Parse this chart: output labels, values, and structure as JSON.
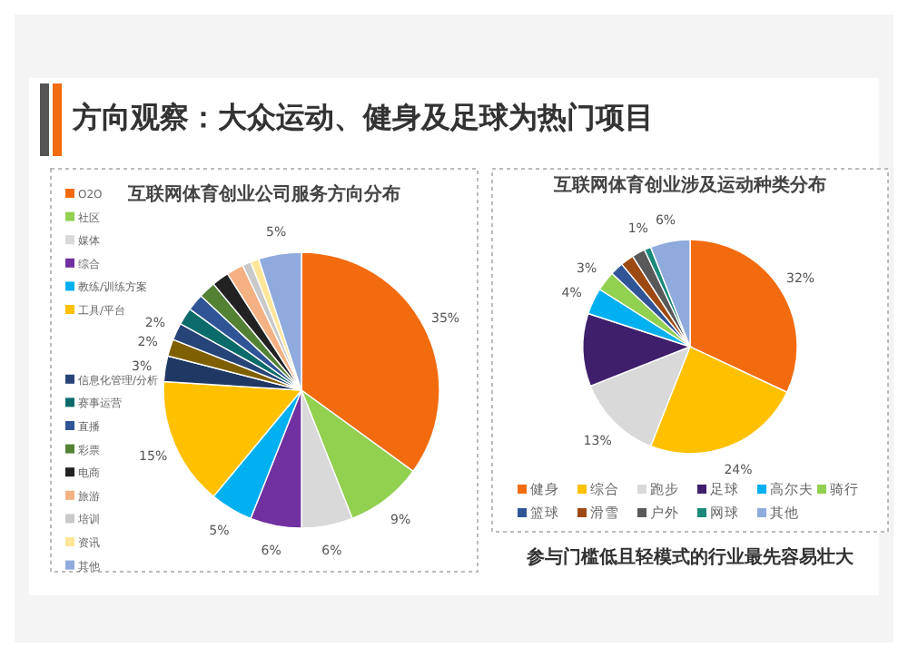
{
  "chart_data": [
    {
      "type": "pie",
      "title": "互联网体育创业公司服务方向分布",
      "annotations": [
        "方向观察：大众运动、健身及足球为热门项目"
      ],
      "legend": "left",
      "categories": [
        "O2O",
        "社区",
        "媒体",
        "综合",
        "教练/训练方案",
        "工具/平台",
        null,
        null,
        "信息化管理/分析",
        "赛事运营",
        "直播",
        "彩票",
        "电商",
        "旅游",
        "培训",
        "资讯",
        "其他"
      ],
      "values": [
        35,
        9,
        6,
        6,
        5,
        15,
        3,
        2,
        2,
        2,
        2,
        2,
        2,
        2,
        1,
        1,
        5
      ],
      "value_labels": [
        "35%",
        "9%",
        "6%",
        "6%",
        "5%",
        "15%",
        "3%",
        "2%",
        "2%",
        null,
        null,
        null,
        null,
        null,
        null,
        null,
        "5%"
      ],
      "colors": [
        "#f26b0f",
        "#92d050",
        "#d9d9d9",
        "#7030a0",
        "#00b0f0",
        "#ffc000",
        "#1f3864",
        "#7f6000",
        "#264478",
        "#0b6b6b",
        "#2f5597",
        "#548235",
        "#222222",
        "#f4b183",
        "#c9c9c9",
        "#ffe699",
        "#8faadc"
      ]
    },
    {
      "type": "pie",
      "title": "互联网体育创业涉及运动种类分布",
      "annotations": [
        "参与门槛低且轻模式的行业最先容易壮大"
      ],
      "legend": "bottom",
      "categories": [
        "健身",
        "综合",
        "跑步",
        "足球",
        "高尔夫",
        "骑行",
        "篮球",
        "滑雪",
        "户外",
        "网球",
        "其他"
      ],
      "values": [
        32,
        24,
        13,
        11,
        4,
        3,
        2,
        2,
        2,
        1,
        6
      ],
      "value_labels": [
        "32%",
        "24%",
        "13%",
        null,
        "4%",
        "3%",
        null,
        null,
        null,
        "1%",
        "6%"
      ],
      "colors": [
        "#f26b0f",
        "#ffc000",
        "#d9d9d9",
        "#3f1f6b",
        "#00b0f0",
        "#92d050",
        "#2f5597",
        "#9c4a12",
        "#595959",
        "#1b8a7a",
        "#8faadc"
      ]
    }
  ]
}
